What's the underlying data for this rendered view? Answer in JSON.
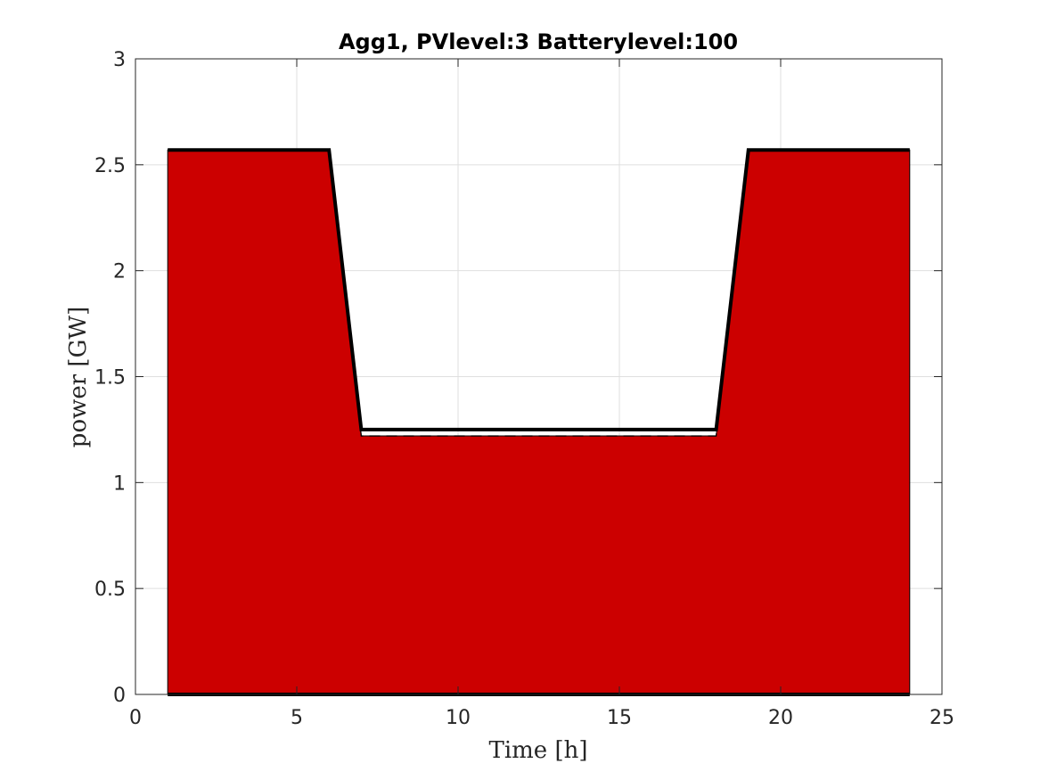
{
  "chart_data": {
    "type": "area",
    "title": "Agg1, PVlevel:3 Batterylevel:100",
    "xlabel": "Time [h]",
    "ylabel": "power [GW]",
    "xlim": [
      0,
      25
    ],
    "ylim": [
      0,
      3
    ],
    "xticks": [
      0,
      5,
      10,
      15,
      20,
      25
    ],
    "yticks": [
      0,
      0.5,
      1,
      1.5,
      2,
      2.5,
      3
    ],
    "xtick_labels": [
      "0",
      "5",
      "10",
      "15",
      "20",
      "25"
    ],
    "ytick_labels": [
      "0",
      "0.5",
      "1",
      "1.5",
      "2",
      "2.5",
      "3"
    ],
    "grid": true,
    "x": [
      1,
      2,
      3,
      4,
      5,
      6,
      7,
      8,
      9,
      10,
      11,
      12,
      13,
      14,
      15,
      16,
      17,
      18,
      19,
      20,
      21,
      22,
      23,
      24
    ],
    "series": [
      {
        "style": "filled-area",
        "color": "#cc0000",
        "values": [
          2.57,
          2.57,
          2.57,
          2.57,
          2.57,
          2.57,
          1.22,
          1.22,
          1.22,
          1.22,
          1.22,
          1.22,
          1.22,
          1.22,
          1.22,
          1.22,
          1.22,
          1.22,
          2.57,
          2.57,
          2.57,
          2.57,
          2.57,
          2.57
        ]
      },
      {
        "style": "solid-line",
        "color": "#000000",
        "values": [
          2.57,
          2.57,
          2.57,
          2.57,
          2.57,
          2.57,
          1.25,
          1.25,
          1.25,
          1.25,
          1.25,
          1.25,
          1.25,
          1.25,
          1.25,
          1.25,
          1.25,
          1.25,
          2.57,
          2.57,
          2.57,
          2.57,
          2.57,
          2.57
        ]
      },
      {
        "style": "dashed-line",
        "color": "#000000",
        "values": [
          2.57,
          2.57,
          2.57,
          2.57,
          2.57,
          2.57,
          1.22,
          1.22,
          1.22,
          1.22,
          1.22,
          1.22,
          1.22,
          1.22,
          1.22,
          1.22,
          1.22,
          1.22,
          2.57,
          2.57,
          2.57,
          2.57,
          2.57,
          2.57
        ]
      },
      {
        "style": "baseline-line",
        "color": "#000000",
        "values": [
          0,
          0,
          0,
          0,
          0,
          0,
          0,
          0,
          0,
          0,
          0,
          0,
          0,
          0,
          0,
          0,
          0,
          0,
          0,
          0,
          0,
          0,
          0,
          0
        ]
      }
    ]
  }
}
